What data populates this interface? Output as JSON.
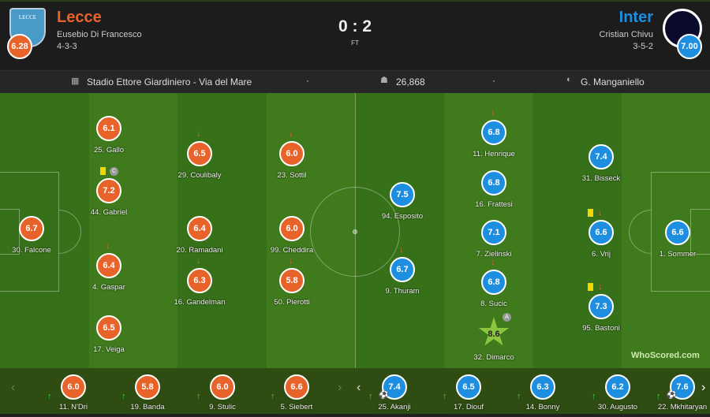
{
  "home": {
    "name": "Lecce",
    "manager": "Eusebio Di Francesco",
    "formation": "4-3-3",
    "rating": "6.28",
    "logo_text": "U.S. LECCE",
    "color": "#e8632a"
  },
  "away": {
    "name": "Inter",
    "manager": "Cristian Chivu",
    "formation": "3-5-2",
    "rating": "7.00",
    "color": "#1e8fe0"
  },
  "score": "0 : 2",
  "status": "FT",
  "info": {
    "stadium": "Stadio Ettore Giardiniero - Via del Mare",
    "attendance": "26,868",
    "referee": "G. Manganiello"
  },
  "home_players": [
    {
      "name": "30. Falcone",
      "rating": "6.7"
    },
    {
      "name": "25. Gallo",
      "rating": "6.1"
    },
    {
      "name": "44. Gabriel",
      "rating": "7.2",
      "yellow": true,
      "captain": "C"
    },
    {
      "name": "4. Gaspar",
      "rating": "6.4",
      "subbed_off": true
    },
    {
      "name": "17. Veiga",
      "rating": "6.5"
    },
    {
      "name": "29. Coulibaly",
      "rating": "6.5",
      "subbed_off": true
    },
    {
      "name": "20. Ramadani",
      "rating": "6.4"
    },
    {
      "name": "16. Gandelman",
      "rating": "6.3",
      "subbed_off": true
    },
    {
      "name": "23. Sottil",
      "rating": "6.0",
      "subbed_off": true
    },
    {
      "name": "99. Cheddira",
      "rating": "6.0"
    },
    {
      "name": "50. Pierotti",
      "rating": "5.8",
      "subbed_off": true
    }
  ],
  "away_players": [
    {
      "name": "94. Esposito",
      "rating": "7.5"
    },
    {
      "name": "9. Thuram",
      "rating": "6.7",
      "subbed_off": true
    },
    {
      "name": "11. Henrique",
      "rating": "6.8",
      "subbed_off": true
    },
    {
      "name": "16. Frattesi",
      "rating": "6.8"
    },
    {
      "name": "7. Zielinski",
      "rating": "7.1"
    },
    {
      "name": "8. Sucic",
      "rating": "6.8",
      "subbed_off": true
    },
    {
      "name": "32. Dimarco",
      "rating": "8.6",
      "motm": true,
      "assist": "A"
    },
    {
      "name": "31. Bisseck",
      "rating": "7.4"
    },
    {
      "name": "6. Vrij",
      "rating": "6.6",
      "yellow": true,
      "subbed_off": true
    },
    {
      "name": "95. Bastoni",
      "rating": "7.3",
      "yellow": true,
      "subbed_off": true
    },
    {
      "name": "1. Sommer",
      "rating": "6.6"
    }
  ],
  "home_subs": [
    {
      "name": "11. N'Dri",
      "rating": "6.0"
    },
    {
      "name": "19. Banda",
      "rating": "5.8"
    },
    {
      "name": "9. Stulic",
      "rating": "6.0"
    },
    {
      "name": "5. Siebert",
      "rating": "6.6"
    }
  ],
  "away_subs": [
    {
      "name": "25. Akanji",
      "rating": "7.4",
      "goal": true
    },
    {
      "name": "17. Diouf",
      "rating": "6.5"
    },
    {
      "name": "14. Bonny",
      "rating": "6.3"
    },
    {
      "name": "30. Augusto",
      "rating": "6.2"
    },
    {
      "name": "22. Mkhitaryan",
      "rating": "7.6",
      "goal": true
    }
  ],
  "watermark": "WhoScored.com"
}
